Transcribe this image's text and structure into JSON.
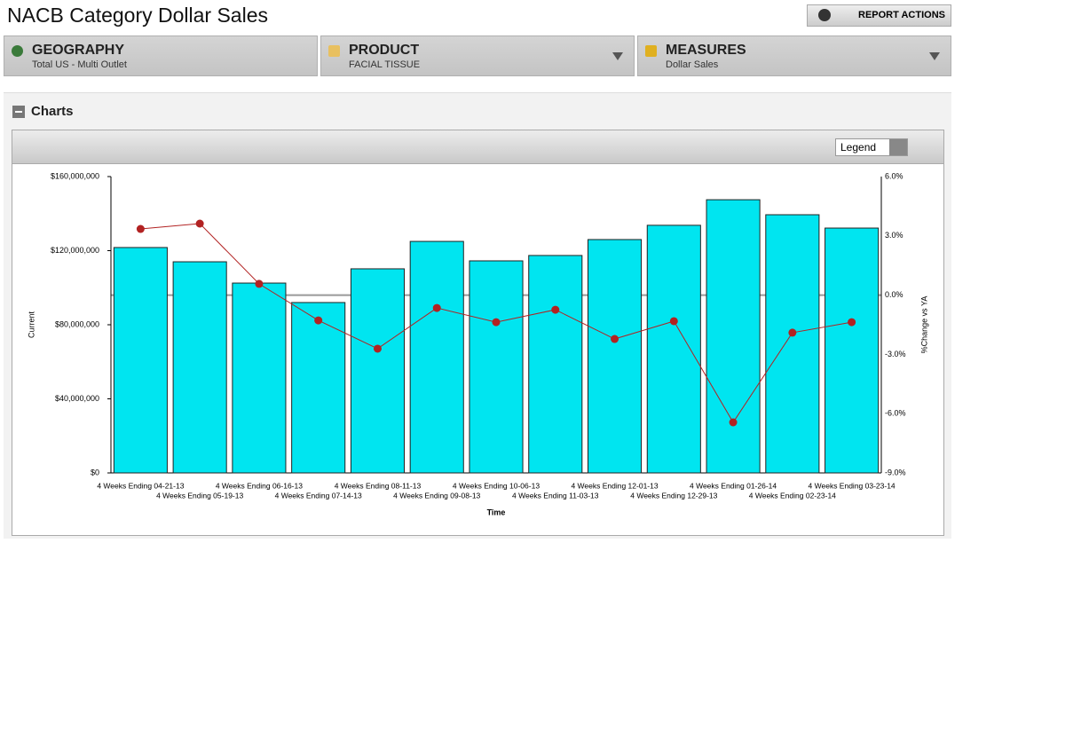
{
  "header": {
    "title": "NACB Category Dollar Sales",
    "action": "REPORT ACTIONS"
  },
  "filters": [
    {
      "label": "GEOGRAPHY",
      "value": "Total US - Multi Outlet"
    },
    {
      "label": "PRODUCT",
      "value": "FACIAL TISSUE"
    },
    {
      "label": "MEASURES",
      "value": "Dollar Sales"
    }
  ],
  "section": {
    "title": "Charts",
    "legend_select": "Legend"
  },
  "chart_data": {
    "type": "bar_line",
    "xlabel": "Time",
    "categories": [
      "4 Weeks Ending 04-21-13",
      "4 Weeks Ending 05-19-13",
      "4 Weeks Ending 06-16-13",
      "4 Weeks Ending 07-14-13",
      "4 Weeks Ending 08-11-13",
      "4 Weeks Ending 09-08-13",
      "4 Weeks Ending 10-06-13",
      "4 Weeks Ending 11-03-13",
      "4 Weeks Ending 12-01-13",
      "4 Weeks Ending 12-29-13",
      "4 Weeks Ending 01-26-14",
      "4 Weeks Ending 02-23-14",
      "4 Weeks Ending 03-23-14"
    ],
    "series": [
      {
        "name": "Current",
        "type": "bar",
        "color": "#00e5f0",
        "values": [
          121700000,
          114000000,
          102500000,
          92000000,
          110200000,
          125000000,
          114500000,
          117400000,
          126000000,
          133700000,
          147500000,
          139400000,
          132200000
        ]
      },
      {
        "name": "%Change vs YA",
        "type": "line",
        "axis": "y2",
        "color": "#b22222",
        "values": [
          3.35,
          3.62,
          0.57,
          -1.28,
          -2.71,
          -0.65,
          -1.37,
          -0.74,
          -2.22,
          -1.32,
          -6.44,
          -1.9,
          -1.37
        ]
      }
    ],
    "ylim": [
      0,
      160000000
    ],
    "yticks": [
      {
        "value": 0,
        "label": "$0"
      },
      {
        "value": 40000000,
        "label": "$40,000,000"
      },
      {
        "value": 80000000,
        "label": "$80,000,000"
      },
      {
        "value": 120000000,
        "label": "$120,000,000"
      },
      {
        "value": 160000000,
        "label": "$160,000,000"
      }
    ],
    "y2lim": [
      -9,
      6
    ],
    "y2ticks": [
      {
        "value": -9,
        "label": "-9.0%"
      },
      {
        "value": -6,
        "label": "-6.0%"
      },
      {
        "value": -3,
        "label": "-3.0%"
      },
      {
        "value": 0,
        "label": "0.0%"
      },
      {
        "value": 3,
        "label": "3.0%"
      },
      {
        "value": 6,
        "label": "6.0%"
      }
    ]
  }
}
